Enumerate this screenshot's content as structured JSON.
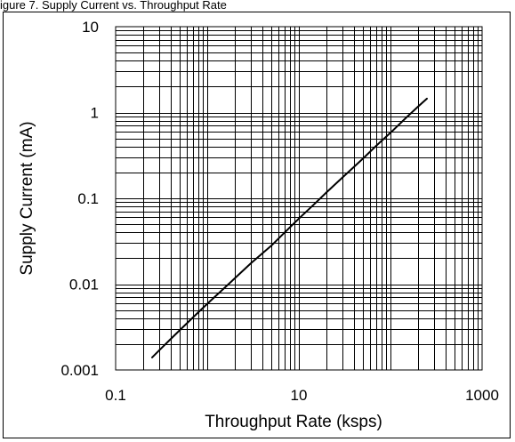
{
  "caption": "igure 7. Supply Current vs. Throughput Rate",
  "chart_data": {
    "type": "line",
    "title": "",
    "xlabel": "Throughput Rate (ksps)",
    "ylabel": "Supply Current (mA)",
    "xscale": "log",
    "yscale": "log",
    "xlim": [
      0.1,
      1000
    ],
    "ylim": [
      0.001,
      10
    ],
    "grid": true,
    "x_tick_labels": [
      "0.1",
      "10",
      "1000"
    ],
    "y_tick_labels": [
      "0.001",
      "0.01",
      "0.1",
      "1",
      "10"
    ],
    "series": [
      {
        "x": [
          0.25,
          0.3,
          0.4,
          0.5,
          0.7,
          1,
          1.5,
          2,
          3,
          5,
          7,
          10,
          15,
          20,
          30,
          40,
          50,
          70,
          100,
          150,
          200,
          250
        ],
        "y": [
          0.0014,
          0.0017,
          0.0023,
          0.0029,
          0.0041,
          0.0059,
          0.0088,
          0.0117,
          0.0175,
          0.028,
          0.04,
          0.058,
          0.087,
          0.117,
          0.175,
          0.233,
          0.29,
          0.41,
          0.58,
          0.88,
          1.17,
          1.45
        ],
        "color": "#000000"
      }
    ],
    "colors": {
      "line": "#000000",
      "grid": "#000000",
      "background": "#ffffff"
    }
  }
}
